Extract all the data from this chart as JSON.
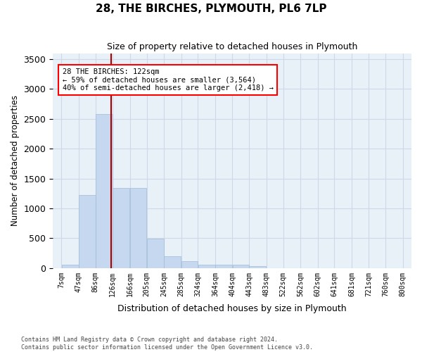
{
  "title": "28, THE BIRCHES, PLYMOUTH, PL6 7LP",
  "subtitle": "Size of property relative to detached houses in Plymouth",
  "xlabel": "Distribution of detached houses by size in Plymouth",
  "ylabel": "Number of detached properties",
  "bar_color": "#c5d8f0",
  "bar_edgecolor": "#a0bcd8",
  "grid_color": "#d0d8e8",
  "bg_color": "#e8f0f8",
  "marker_color": "#aa0000",
  "marker_value": 122,
  "annotation_text": "28 THE BIRCHES: 122sqm\n← 59% of detached houses are smaller (3,564)\n40% of semi-detached houses are larger (2,418) →",
  "bin_edges": [
    7,
    47,
    86,
    126,
    166,
    205,
    245,
    285,
    324,
    364,
    404,
    443,
    483,
    522,
    562,
    602,
    641,
    681,
    721,
    760,
    800
  ],
  "bar_heights": [
    55,
    1225,
    2580,
    1340,
    1340,
    490,
    195,
    110,
    55,
    55,
    55,
    30,
    0,
    0,
    0,
    0,
    0,
    0,
    0,
    0
  ],
  "tick_labels": [
    "7sqm",
    "47sqm",
    "86sqm",
    "126sqm",
    "166sqm",
    "205sqm",
    "245sqm",
    "285sqm",
    "324sqm",
    "364sqm",
    "404sqm",
    "443sqm",
    "483sqm",
    "522sqm",
    "562sqm",
    "602sqm",
    "641sqm",
    "681sqm",
    "721sqm",
    "760sqm",
    "800sqm"
  ],
  "ylim": [
    0,
    3600
  ],
  "yticks": [
    0,
    500,
    1000,
    1500,
    2000,
    2500,
    3000,
    3500
  ],
  "footnote": "Contains HM Land Registry data © Crown copyright and database right 2024.\nContains public sector information licensed under the Open Government Licence v3.0."
}
